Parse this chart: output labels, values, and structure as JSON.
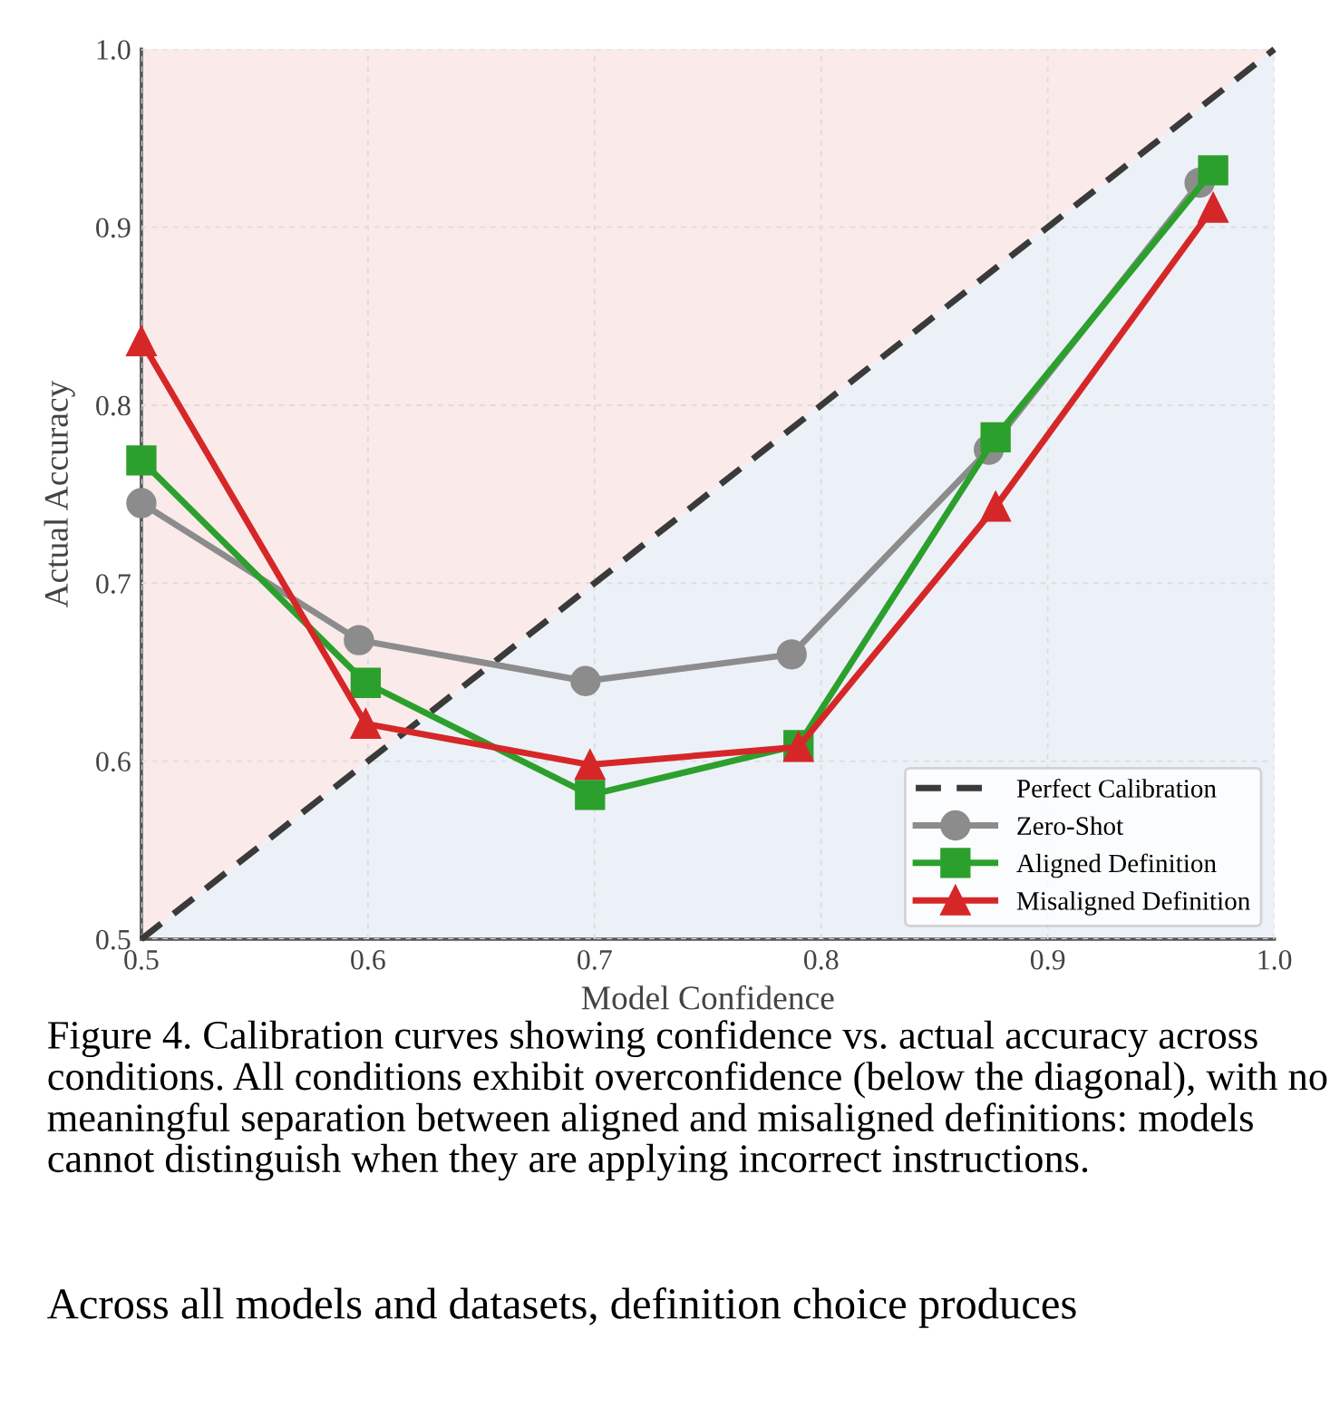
{
  "chart_data": {
    "type": "line",
    "xlabel": "Model Confidence",
    "ylabel": "Actual Accuracy",
    "xlim": [
      0.5,
      1.0
    ],
    "ylim": [
      0.5,
      1.0
    ],
    "xticks": [
      0.5,
      0.6,
      0.7,
      0.8,
      0.9,
      {
        "value": 1.0,
        "label": "1.0"
      }
    ],
    "yticks": [
      0.5,
      0.6,
      0.7,
      0.8,
      0.9,
      {
        "value": 1.0,
        "label": "1.0"
      }
    ],
    "grid": true,
    "legend": "bottom right",
    "series": [
      {
        "name": "Perfect Calibration",
        "color": "#3a3a3a",
        "line_style": "dashed",
        "marker": "none",
        "x": [
          0.5,
          1.0
        ],
        "values": [
          0.5,
          1.0
        ]
      },
      {
        "name": "Zero-Shot",
        "color": "#8c8c8c",
        "marker": "circle",
        "x": [
          0.5,
          0.596,
          0.696,
          0.787,
          0.874,
          0.967
        ],
        "values": [
          0.745,
          0.668,
          0.645,
          0.66,
          0.775,
          0.925
        ]
      },
      {
        "name": "Aligned Definition",
        "color": "#2ca02c",
        "marker": "square",
        "x": [
          0.5,
          0.599,
          0.698,
          0.79,
          0.877,
          0.973
        ],
        "values": [
          0.769,
          0.644,
          0.581,
          0.609,
          0.782,
          0.932
        ]
      },
      {
        "name": "Misaligned Definition",
        "color": "#d62728",
        "marker": "triangle",
        "x": [
          0.5,
          0.599,
          0.698,
          0.79,
          0.877,
          0.973
        ],
        "values": [
          0.836,
          0.621,
          0.598,
          0.608,
          0.743,
          0.911
        ]
      }
    ],
    "annotations": [
      "Figure 4. Calibration curves showing confidence vs. actual accuracy across conditions. All conditions exhibit overconfidence (below the diagonal), with no meaningful separation between aligned and misaligned definitions: models cannot distinguish when they are applying incorrect instructions.",
      "Across all models and datasets, definition choice produces"
    ]
  }
}
